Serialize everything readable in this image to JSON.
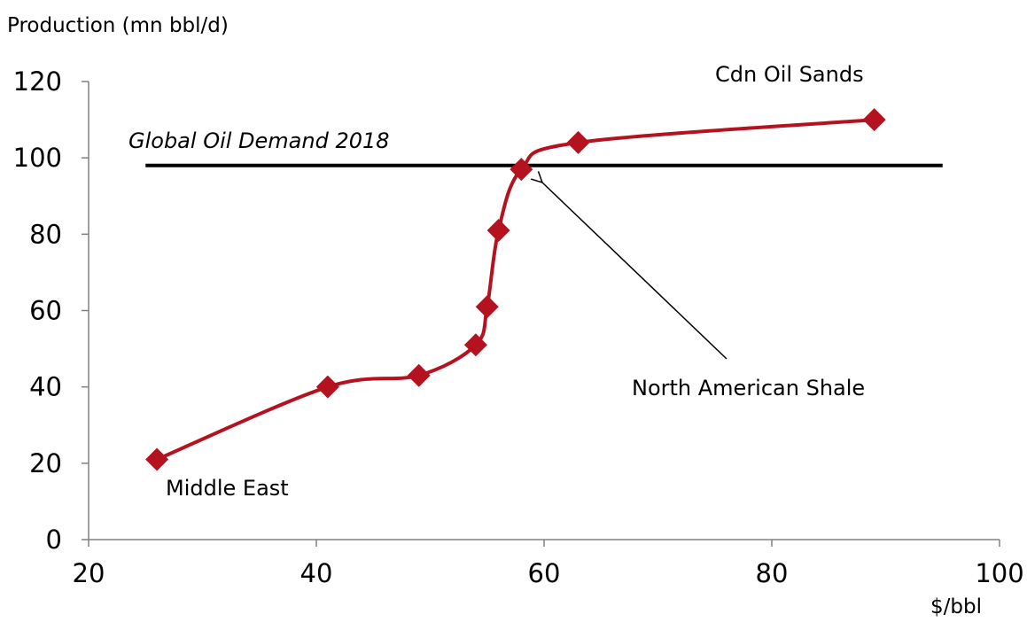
{
  "chart_data": {
    "type": "line",
    "ylabel": "Production (mn bbl/d)",
    "xlabel": "$/bbl",
    "xlim": [
      20,
      100
    ],
    "ylim": [
      0,
      120
    ],
    "x_ticks": [
      20,
      40,
      60,
      80,
      100
    ],
    "y_ticks": [
      0,
      20,
      40,
      60,
      80,
      100,
      120
    ],
    "grid": false,
    "series": [
      {
        "color": "#B4121F",
        "marker": "diamond",
        "smooth": true,
        "points": [
          {
            "x": 26,
            "y": 21
          },
          {
            "x": 41,
            "y": 40
          },
          {
            "x": 49,
            "y": 43
          },
          {
            "x": 54,
            "y": 51
          },
          {
            "x": 55,
            "y": 61
          },
          {
            "x": 56,
            "y": 81
          },
          {
            "x": 58,
            "y": 97
          },
          {
            "x": 63,
            "y": 104
          },
          {
            "x": 89,
            "y": 110
          }
        ]
      }
    ],
    "reference_line": {
      "label": "Global Oil Demand 2018",
      "y": 98,
      "x_start": 25,
      "x_end": 95,
      "color": "#000000"
    },
    "annotations": [
      {
        "text": "Cdn Oil Sands",
        "x": 89,
        "y": 110
      },
      {
        "text": "Middle East",
        "x": 26,
        "y": 21
      },
      {
        "text": "North American Shale",
        "x": 58,
        "y": 97,
        "arrow": true
      }
    ]
  }
}
